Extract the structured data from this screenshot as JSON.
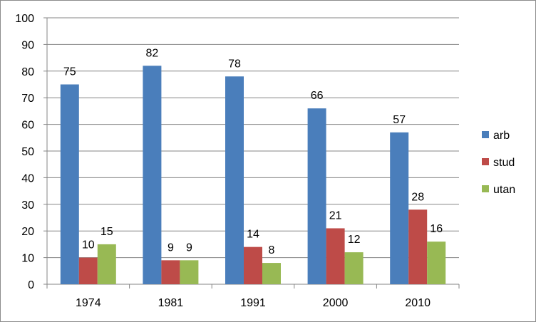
{
  "chart_data": {
    "type": "bar",
    "categories": [
      "1974",
      "1981",
      "1991",
      "2000",
      "2010"
    ],
    "series": [
      {
        "name": "arb",
        "values": [
          75,
          82,
          78,
          66,
          57
        ],
        "labels": [
          "75",
          "82",
          "78",
          "66",
          "57"
        ],
        "color": "#4a7ebb"
      },
      {
        "name": "stud",
        "values": [
          10,
          9,
          14,
          21,
          28
        ],
        "labels": [
          "10",
          "9",
          "14",
          "21",
          "28"
        ],
        "color": "#be4b48"
      },
      {
        "name": "utan",
        "values": [
          15,
          9,
          8,
          12,
          16
        ],
        "labels": [
          "15",
          "9",
          "8",
          "12",
          "16"
        ],
        "color": "#98b954"
      }
    ],
    "ylim": [
      0,
      100
    ],
    "yticks": [
      "0",
      "10",
      "20",
      "30",
      "40",
      "50",
      "60",
      "70",
      "80",
      "90",
      "100"
    ],
    "grid": true,
    "legend": "right"
  }
}
